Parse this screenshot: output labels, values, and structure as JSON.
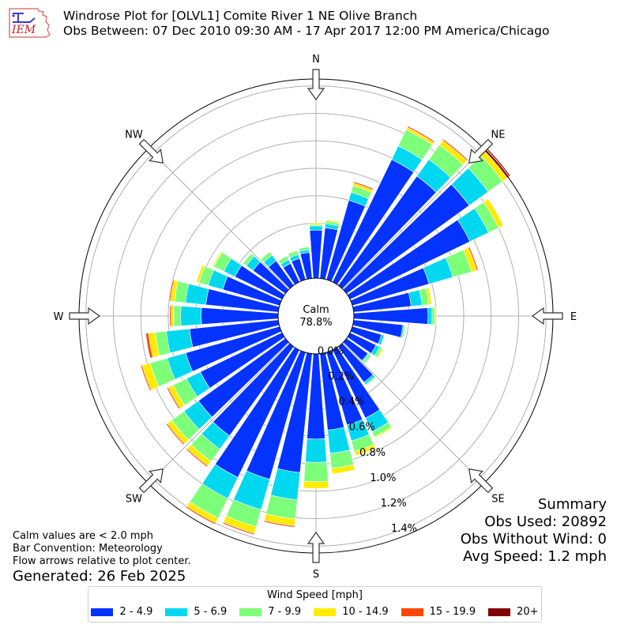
{
  "header": {
    "logo_text": "IEM",
    "title_line1": "Windrose Plot for [OLVL1] Comite River 1 NE Olive Branch",
    "title_line2": "Obs Between: 07 Dec 2010 09:30 AM - 17 Apr 2017 12:00 PM America/Chicago"
  },
  "summary": {
    "title": "Summary",
    "obs_used": "Obs Used: 20892",
    "obs_without_wind": "Obs Without Wind: 0",
    "avg_speed": "Avg Speed: 1.2 mph"
  },
  "notes": {
    "calm": "Calm values are < 2.0 mph",
    "convention": "Bar Convention: Meteorology",
    "flow": "Flow arrows relative to plot center.",
    "generated": "Generated: 26 Feb 2025"
  },
  "chart_data": {
    "type": "windrose",
    "units": "percent of observations",
    "calm": {
      "label": "Calm",
      "value_text": "78.8%"
    },
    "radial_ticks": [
      "0.0%",
      "0.2%",
      "0.4%",
      "0.6%",
      "0.8%",
      "1.0%",
      "1.2%",
      "1.4%"
    ],
    "rmax": 1.45,
    "compass_labels": [
      "N",
      "NE",
      "E",
      "SE",
      "S",
      "SW",
      "W",
      "NW"
    ],
    "legend_title": "Wind Speed [mph]",
    "bins": [
      {
        "label": "2 - 4.9",
        "color": "#0433ff"
      },
      {
        "label": "5 - 6.9",
        "color": "#00d8f0"
      },
      {
        "label": "7 - 9.9",
        "color": "#7dff7a"
      },
      {
        "label": "10 - 14.9",
        "color": "#ffeb00"
      },
      {
        "label": "15 - 19.9",
        "color": "#ff4500"
      },
      {
        "label": "20+",
        "color": "#800000"
      }
    ],
    "directions": [
      0,
      10,
      20,
      30,
      40,
      50,
      60,
      70,
      80,
      90,
      100,
      110,
      120,
      130,
      140,
      150,
      160,
      170,
      180,
      190,
      200,
      210,
      220,
      230,
      240,
      250,
      260,
      270,
      280,
      290,
      300,
      310,
      320,
      330,
      340,
      350
    ],
    "cumulative": [
      [
        0.35,
        0.38,
        0.39,
        0.4,
        0.4,
        0.4
      ],
      [
        0.37,
        0.4,
        0.42,
        0.43,
        0.43,
        0.43
      ],
      [
        0.6,
        0.66,
        0.71,
        0.73,
        0.74,
        0.74
      ],
      [
        0.99,
        1.1,
        1.23,
        1.25,
        1.26,
        1.26
      ],
      [
        0.98,
        1.13,
        1.26,
        1.3,
        1.31,
        1.31
      ],
      [
        1.1,
        1.27,
        1.4,
        1.44,
        1.46,
        1.47
      ],
      [
        0.97,
        1.12,
        1.2,
        1.24,
        1.24,
        1.24
      ],
      [
        0.58,
        0.76,
        0.9,
        0.94,
        0.95,
        0.95
      ],
      [
        0.42,
        0.5,
        0.55,
        0.57,
        0.57,
        0.57
      ],
      [
        0.54,
        0.57,
        0.59,
        0.6,
        0.6,
        0.6
      ],
      [
        0.36,
        0.37,
        0.38,
        0.38,
        0.38,
        0.38
      ],
      [
        0.22,
        0.24,
        0.24,
        0.24,
        0.24,
        0.24
      ],
      [
        0.21,
        0.24,
        0.26,
        0.27,
        0.27,
        0.27
      ],
      [
        0.19,
        0.2,
        0.22,
        0.22,
        0.22,
        0.22
      ],
      [
        0.32,
        0.34,
        0.35,
        0.35,
        0.35,
        0.35
      ],
      [
        0.55,
        0.66,
        0.7,
        0.71,
        0.71,
        0.71
      ],
      [
        0.55,
        0.67,
        0.75,
        0.78,
        0.78,
        0.78
      ],
      [
        0.56,
        0.73,
        0.84,
        0.88,
        0.88,
        0.88
      ],
      [
        0.62,
        0.79,
        0.93,
        0.98,
        0.98,
        0.98
      ],
      [
        0.87,
        1.07,
        1.21,
        1.26,
        1.27,
        1.27
      ],
      [
        0.96,
        1.19,
        1.32,
        1.37,
        1.38,
        1.38
      ],
      [
        1.03,
        1.2,
        1.36,
        1.4,
        1.41,
        1.41
      ],
      [
        0.8,
        0.92,
        1.03,
        1.07,
        1.08,
        1.08
      ],
      [
        0.78,
        0.91,
        1.02,
        1.06,
        1.07,
        1.07
      ],
      [
        0.66,
        0.77,
        0.88,
        0.92,
        0.93,
        0.93
      ],
      [
        0.71,
        0.85,
        0.98,
        1.04,
        1.05,
        1.05
      ],
      [
        0.65,
        0.82,
        0.9,
        0.95,
        0.97,
        0.97
      ],
      [
        0.56,
        0.71,
        0.76,
        0.78,
        0.79,
        0.79
      ],
      [
        0.53,
        0.68,
        0.76,
        0.79,
        0.8,
        0.8
      ],
      [
        0.43,
        0.54,
        0.61,
        0.63,
        0.63,
        0.63
      ],
      [
        0.38,
        0.47,
        0.55,
        0.56,
        0.56,
        0.56
      ],
      [
        0.29,
        0.35,
        0.38,
        0.38,
        0.38,
        0.38
      ],
      [
        0.22,
        0.27,
        0.3,
        0.3,
        0.3,
        0.3
      ],
      [
        0.15,
        0.18,
        0.21,
        0.21,
        0.21,
        0.21
      ],
      [
        0.16,
        0.19,
        0.22,
        0.22,
        0.22,
        0.22
      ],
      [
        0.19,
        0.21,
        0.23,
        0.23,
        0.23,
        0.23
      ]
    ]
  }
}
